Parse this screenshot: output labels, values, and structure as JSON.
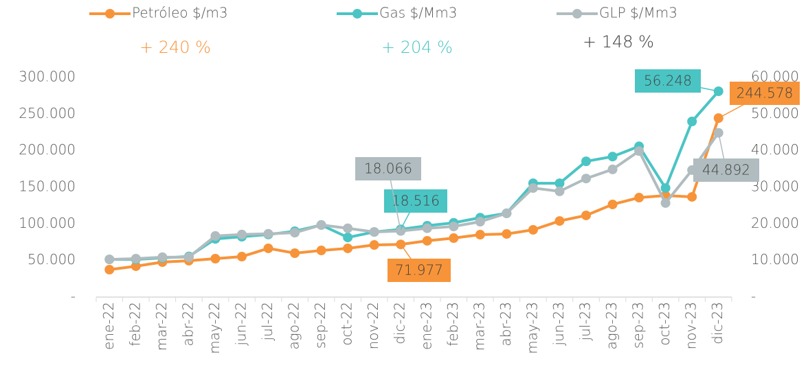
{
  "chart_data": {
    "type": "line",
    "categories": [
      "ene-22",
      "feb-22",
      "mar-22",
      "abr-22",
      "may-22",
      "jun-22",
      "jul-22",
      "ago-22",
      "sep-22",
      "oct-22",
      "nov-22",
      "dic-22",
      "ene-23",
      "feb-23",
      "mar-23",
      "abr-23",
      "may-23",
      "jun-23",
      "jul-23",
      "ago-23",
      "sep-23",
      "oct-23",
      "nov-23",
      "dic-23"
    ],
    "series": [
      {
        "name": "Petróleo $/m3",
        "color": "#f7943a",
        "axis": "y",
        "values": [
          37500,
          42200,
          47800,
          49700,
          52500,
          55300,
          66600,
          60000,
          63700,
          66600,
          71200,
          71977,
          76900,
          80600,
          85300,
          86300,
          91900,
          104000,
          111600,
          126600,
          135900,
          138800,
          136900,
          244578
        ],
        "value_labels": [
          null,
          null,
          null,
          null,
          null,
          null,
          null,
          null,
          null,
          null,
          null,
          "71.977",
          null,
          null,
          null,
          null,
          null,
          null,
          null,
          null,
          null,
          null,
          null,
          "244.578"
        ]
      },
      {
        "name": "Gas $/Mm3",
        "color": "#4bc4c4",
        "axis": "y2",
        "values": [
          10300,
          10300,
          10700,
          11100,
          15900,
          16500,
          17100,
          18000,
          19700,
          16300,
          17800,
          18516,
          19500,
          20300,
          21700,
          22900,
          31100,
          31100,
          37100,
          38400,
          41200,
          29800,
          48000,
          56248
        ],
        "value_labels": [
          null,
          null,
          null,
          null,
          null,
          null,
          null,
          null,
          null,
          null,
          null,
          "18.516",
          null,
          null,
          null,
          null,
          null,
          null,
          null,
          null,
          null,
          null,
          null,
          "56.248"
        ]
      },
      {
        "name": "GLP $/Mm3",
        "color": "#b0bcbf",
        "axis": "y2",
        "values": [
          10300,
          10500,
          10900,
          10900,
          16700,
          17100,
          17300,
          17600,
          19700,
          18800,
          17800,
          18066,
          18800,
          19300,
          20600,
          22900,
          29800,
          28900,
          32400,
          34900,
          39900,
          25700,
          34700,
          44892
        ],
        "value_labels": [
          null,
          null,
          null,
          null,
          null,
          null,
          null,
          null,
          null,
          null,
          null,
          "18.066",
          null,
          null,
          null,
          null,
          null,
          null,
          null,
          null,
          null,
          null,
          null,
          "44.892"
        ]
      }
    ],
    "annotations": [
      {
        "text": "+ 240 %",
        "color": "#f7943a"
      },
      {
        "text": "+ 204 %",
        "color": "#4bc4c4"
      },
      {
        "text": "+ 148 %",
        "color": "#404040"
      }
    ],
    "ylim": [
      0,
      300000
    ],
    "yticks": [
      {
        "value": 0,
        "label": "-"
      },
      {
        "value": 50000,
        "label": "50.000"
      },
      {
        "value": 100000,
        "label": "100.000"
      },
      {
        "value": 150000,
        "label": "150.000"
      },
      {
        "value": 200000,
        "label": "200.000"
      },
      {
        "value": 250000,
        "label": "250.000"
      },
      {
        "value": 300000,
        "label": "300.000"
      }
    ],
    "y2lim": [
      0,
      60000
    ],
    "y2ticks": [
      {
        "value": 0,
        "label": "-"
      },
      {
        "value": 10000,
        "label": "10.000"
      },
      {
        "value": 20000,
        "label": "20.000"
      },
      {
        "value": 30000,
        "label": "30.000"
      },
      {
        "value": 40000,
        "label": "40.000"
      },
      {
        "value": 50000,
        "label": "50.000"
      },
      {
        "value": 60000,
        "label": "60.000"
      }
    ],
    "legend": "top"
  }
}
